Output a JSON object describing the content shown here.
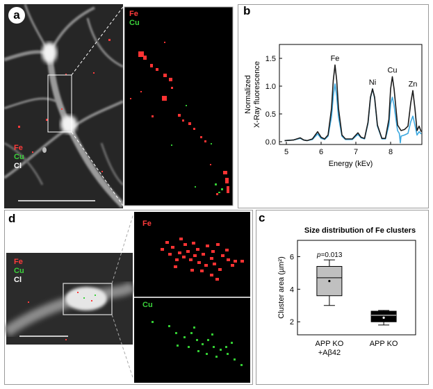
{
  "panels": {
    "a": {
      "letter": "a",
      "legend": [
        "Fe",
        "Cu",
        "Cl"
      ],
      "zoom_legend": [
        "Fe",
        "Cu"
      ]
    },
    "b": {
      "letter": "b",
      "peak_labels": [
        "Fe",
        "Ni",
        "Cu",
        "Zn"
      ]
    },
    "c": {
      "letter": "c",
      "title": "Size distribution of Fe clusters",
      "pvalue_prefix": "p",
      "pvalue_rest": "=0.013"
    },
    "d": {
      "letter": "d",
      "legend": [
        "Fe",
        "Cu",
        "Cl"
      ],
      "zoom_fe": "Fe",
      "zoom_cu": "Cu"
    }
  },
  "colors": {
    "fe": "#ff3b3b",
    "cu": "#3bd23b",
    "cl": "#ffffff",
    "black_curve": "#1a1a1a",
    "blue_curve": "#3aa8e0"
  },
  "chart_data": [
    {
      "type": "line",
      "xlabel": "Energy (kEv)",
      "ylabel": "Normalized X-Ray fluorescence",
      "xlim": [
        4.8,
        8.9
      ],
      "ylim": [
        -0.05,
        1.75
      ],
      "xticks": [
        "5",
        "6",
        "7",
        "8"
      ],
      "yticks": [
        "0.0",
        "0.5",
        "1.0",
        "1.5"
      ],
      "grid": false,
      "peaks": [
        {
          "label": "Fe",
          "x": 6.4,
          "y_black": 1.38,
          "y_blue": 1.04
        },
        {
          "label": "Ni",
          "x": 7.48,
          "y_black": 0.95,
          "y_blue": 0.95
        },
        {
          "label": "Cu",
          "x": 8.05,
          "y_black": 1.17,
          "y_blue": 0.8
        },
        {
          "label": "Zn",
          "x": 8.64,
          "y_black": 0.92,
          "y_blue": 0.46
        }
      ],
      "series": [
        {
          "color": "#1a1a1a",
          "x": [
            4.95,
            5.2,
            5.4,
            5.5,
            5.6,
            5.75,
            5.9,
            6.0,
            6.1,
            6.2,
            6.3,
            6.35,
            6.4,
            6.45,
            6.5,
            6.6,
            6.7,
            6.9,
            7.0,
            7.06,
            7.15,
            7.25,
            7.35,
            7.42,
            7.48,
            7.54,
            7.62,
            7.75,
            7.85,
            7.95,
            8.0,
            8.05,
            8.1,
            8.2,
            8.3,
            8.4,
            8.5,
            8.58,
            8.64,
            8.7,
            8.76,
            8.82,
            8.88
          ],
          "y": [
            0.02,
            0.03,
            0.07,
            0.03,
            0.02,
            0.05,
            0.18,
            0.08,
            0.05,
            0.12,
            0.6,
            1.1,
            1.38,
            1.1,
            0.6,
            0.12,
            0.05,
            0.05,
            0.12,
            0.16,
            0.08,
            0.06,
            0.35,
            0.8,
            0.95,
            0.8,
            0.3,
            0.06,
            0.06,
            0.4,
            0.95,
            1.17,
            0.95,
            0.3,
            0.2,
            0.22,
            0.28,
            0.7,
            0.92,
            0.6,
            0.2,
            0.28,
            0.18
          ]
        },
        {
          "color": "#3aa8e0",
          "x": [
            4.95,
            5.2,
            5.4,
            5.5,
            5.6,
            5.75,
            5.9,
            6.0,
            6.1,
            6.2,
            6.3,
            6.35,
            6.4,
            6.45,
            6.5,
            6.6,
            6.7,
            6.9,
            7.0,
            7.06,
            7.15,
            7.25,
            7.35,
            7.42,
            7.48,
            7.54,
            7.62,
            7.75,
            7.85,
            7.95,
            8.0,
            8.05,
            8.1,
            8.2,
            8.25,
            8.28,
            8.3,
            8.4,
            8.5,
            8.58,
            8.64,
            8.7,
            8.76,
            8.82,
            8.88
          ],
          "y": [
            0.02,
            0.03,
            0.06,
            0.03,
            0.02,
            0.04,
            0.14,
            0.06,
            0.04,
            0.1,
            0.45,
            0.82,
            1.04,
            0.82,
            0.45,
            0.1,
            0.04,
            0.04,
            0.1,
            0.13,
            0.07,
            0.05,
            0.33,
            0.78,
            0.95,
            0.78,
            0.28,
            0.05,
            0.05,
            0.3,
            0.68,
            0.8,
            0.65,
            0.2,
            0.15,
            -0.02,
            0.1,
            0.12,
            0.15,
            0.36,
            0.46,
            0.3,
            0.12,
            0.18,
            0.14
          ]
        }
      ]
    },
    {
      "type": "box",
      "ylabel": "Cluster area (µm²)",
      "ylim": [
        1.2,
        7.0
      ],
      "yticks": [
        "2",
        "4",
        "6"
      ],
      "categories": [
        "APP KO +Aβ42",
        "APP KO"
      ],
      "category_lines": [
        [
          "APP KO",
          "+Aβ42"
        ],
        [
          "APP KO"
        ]
      ],
      "boxes": [
        {
          "min": 3.0,
          "q1": 3.6,
          "median": 4.7,
          "q3": 5.4,
          "max": 5.8,
          "mean": 4.5,
          "fill": "#c0c0c0"
        },
        {
          "min": 1.8,
          "q1": 2.0,
          "median": 2.4,
          "q3": 2.65,
          "max": 2.7,
          "mean": 2.25,
          "fill": "#000000"
        }
      ]
    }
  ]
}
